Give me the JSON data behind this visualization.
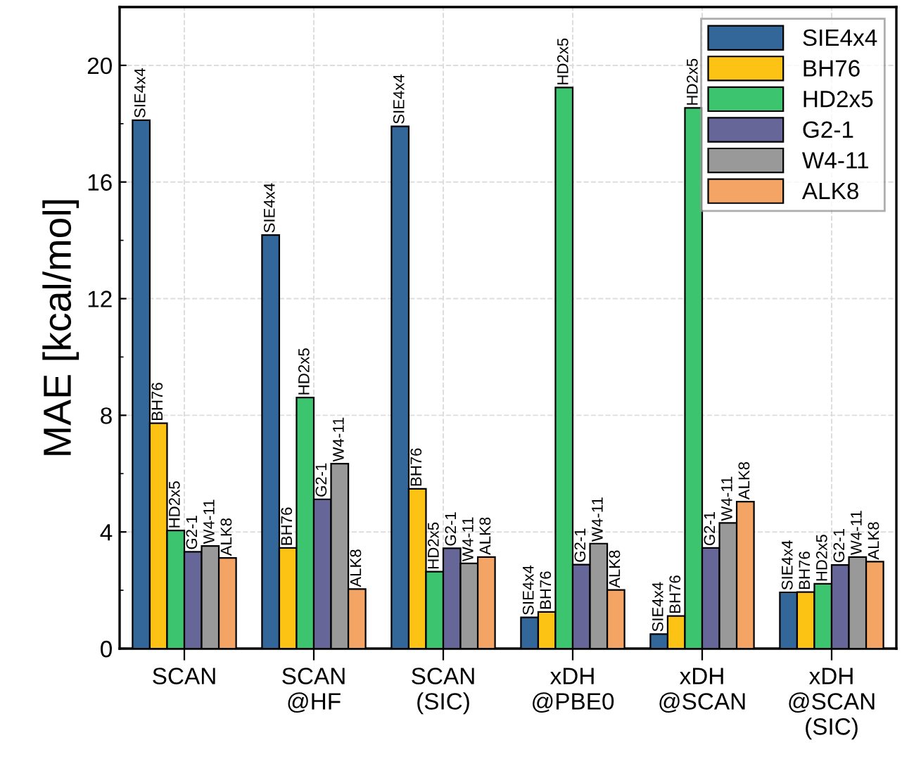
{
  "chart_data": {
    "type": "bar",
    "ylabel": "MAE [kcal/mol]",
    "categories": [
      "SCAN",
      "SCAN\n@HF",
      "SCAN\n(SIC)",
      "xDH\n@PBE0",
      "xDH\n@SCAN",
      "xDH\n@SCAN\n(SIC)"
    ],
    "series": [
      {
        "name": "SIE4x4",
        "color": "#336699",
        "values": [
          18.12,
          14.18,
          17.91,
          1.07,
          0.5,
          1.93
        ],
        "value_labels": [
          "SIE4x4",
          "SIE4x4",
          "SIE4x4",
          "SIE4x4",
          "SIE4x4",
          "SIE4x4"
        ]
      },
      {
        "name": "BH76",
        "color": "#fdc314",
        "values": [
          7.73,
          3.45,
          5.48,
          1.26,
          1.12,
          1.94
        ],
        "value_labels": [
          "BH76",
          "BH76",
          "BH76",
          "BH76",
          "BH76",
          "BH76"
        ]
      },
      {
        "name": "HD2x5",
        "color": "#3cc46e",
        "values": [
          4.05,
          8.61,
          2.64,
          19.24,
          18.54,
          2.22
        ],
        "value_labels": [
          "HD2x5",
          "HD2x5",
          "HD2x5",
          "HD2x5",
          "HD2x5",
          "HD2x5"
        ]
      },
      {
        "name": "G2-1",
        "color": "#666699",
        "values": [
          3.32,
          5.12,
          3.44,
          2.88,
          3.45,
          2.87
        ],
        "value_labels": [
          "G2-1",
          "G2-1",
          "G2-1",
          "G2-1",
          "G2-1",
          "G2-1"
        ]
      },
      {
        "name": "W4-11",
        "color": "#999999",
        "values": [
          3.52,
          6.34,
          2.92,
          3.6,
          4.31,
          3.14
        ],
        "value_labels": [
          "W4-11",
          "W4-11",
          "W4-11",
          "W4-11",
          "W4-11",
          "W4-11"
        ]
      },
      {
        "name": "ALK8",
        "color": "#f4a464",
        "values": [
          3.11,
          2.04,
          3.14,
          2.01,
          5.04,
          2.98
        ],
        "value_labels": [
          "ALK8",
          "ALK8",
          "ALK8",
          "ALK8",
          "ALK8",
          "ALK8"
        ]
      }
    ],
    "ylim": [
      0,
      22
    ],
    "yticks": [
      0,
      4,
      8,
      12,
      16,
      20
    ],
    "grid": true,
    "legend": "top right"
  }
}
